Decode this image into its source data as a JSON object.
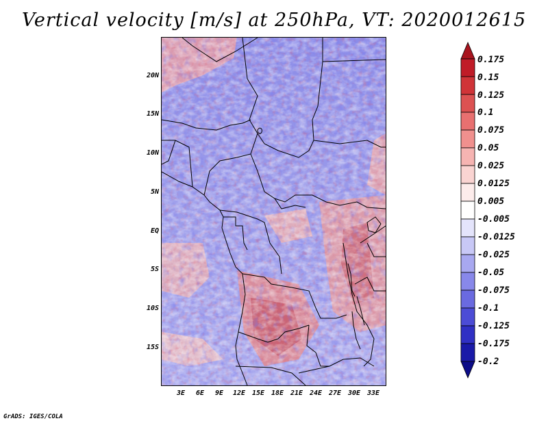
{
  "title": "Vertical velocity [m/s] at 250hPa, VT: 2020012615",
  "footer": "GrADS: IGES/COLA",
  "map": {
    "lat_labels": [
      "20N",
      "15N",
      "10N",
      "5N",
      "EQ",
      "5S",
      "10S",
      "15S"
    ],
    "lon_labels": [
      "3E",
      "6E",
      "9E",
      "12E",
      "15E",
      "18E",
      "21E",
      "24E",
      "27E",
      "30E",
      "33E"
    ],
    "variable": "Vertical velocity",
    "units": "m/s",
    "level": "250hPa",
    "valid_time": "2020012615"
  },
  "colorbar": {
    "labels": [
      "0.175",
      "0.15",
      "0.125",
      "0.1",
      "0.075",
      "0.05",
      "0.025",
      "0.0125",
      "0.005",
      "-0.005",
      "-0.0125",
      "-0.025",
      "-0.05",
      "-0.075",
      "-0.1",
      "-0.125",
      "-0.175",
      "-0.2"
    ],
    "colors": [
      "#a8141e",
      "#c01c28",
      "#d03438",
      "#dc5252",
      "#e87070",
      "#f0908e",
      "#f6b4b2",
      "#fad4d2",
      "#fdeceb",
      "#ffffff",
      "#e4e4fb",
      "#c8c8f6",
      "#a8a8f0",
      "#8888ea",
      "#6a6ae0",
      "#4c4cd6",
      "#3030c4",
      "#1a1aa8",
      "#0c0c88"
    ]
  }
}
